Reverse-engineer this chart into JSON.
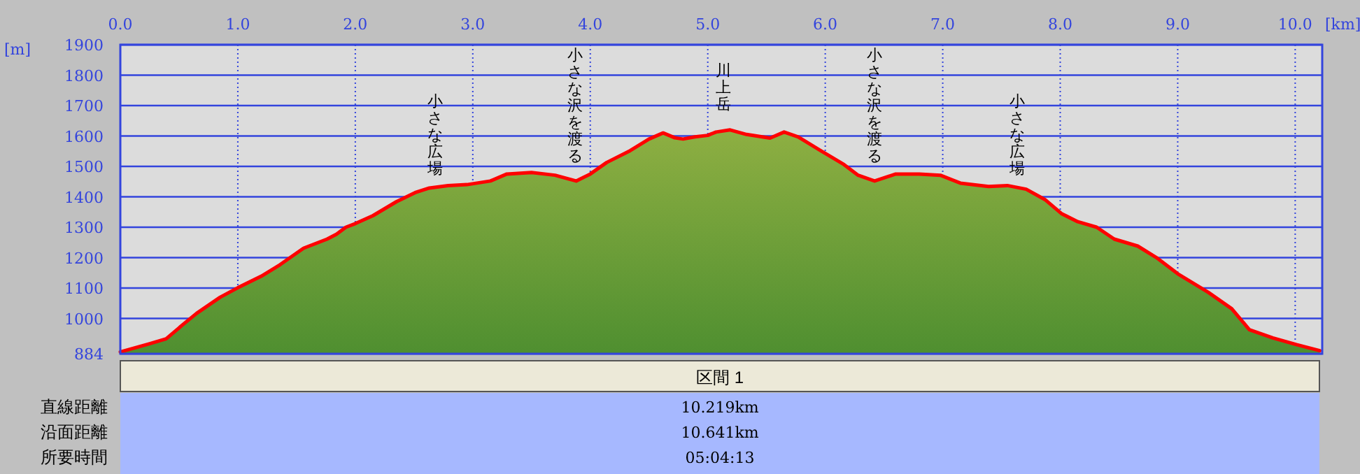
{
  "chart_data": {
    "type": "area",
    "xlabel": "[km]",
    "ylabel": "[m]",
    "x": [
      0,
      0.25,
      0.39,
      0.53,
      0.65,
      0.85,
      1.0,
      1.2,
      1.36,
      1.56,
      1.76,
      1.84,
      1.92,
      2.0,
      2.15,
      2.35,
      2.51,
      2.63,
      2.79,
      2.95,
      3.15,
      3.29,
      3.5,
      3.7,
      3.88,
      4.0,
      4.14,
      4.34,
      4.5,
      4.62,
      4.72,
      4.79,
      4.89,
      5.0,
      5.07,
      5.19,
      5.33,
      5.53,
      5.65,
      5.77,
      5.96,
      6.16,
      6.28,
      6.42,
      6.6,
      6.8,
      6.98,
      7.15,
      7.39,
      7.55,
      7.71,
      7.87,
      8.01,
      8.15,
      8.31,
      8.46,
      8.66,
      8.82,
      9.0,
      9.26,
      9.46,
      9.61,
      9.81,
      10.01,
      10.21
    ],
    "series": [
      {
        "color": "#ff0000",
        "values": [
          890,
          917,
          933,
          979,
          1017,
          1070,
          1101,
          1139,
          1177,
          1231,
          1261,
          1277,
          1300,
          1312,
          1338,
          1384,
          1414,
          1429,
          1437,
          1440,
          1452,
          1475,
          1480,
          1471,
          1452,
          1475,
          1513,
          1552,
          1590,
          1610,
          1594,
          1590,
          1597,
          1602,
          1613,
          1620,
          1605,
          1593,
          1613,
          1597,
          1552,
          1506,
          1471,
          1452,
          1475,
          1475,
          1471,
          1445,
          1434,
          1437,
          1425,
          1391,
          1345,
          1318,
          1300,
          1261,
          1238,
          1200,
          1147,
          1086,
          1032,
          963,
          936,
          914,
          894
        ]
      }
    ],
    "xlim": [
      0,
      10.23
    ],
    "ylim": [
      884,
      1900
    ],
    "xticks": [
      {
        "value": 0,
        "label": "0.0"
      },
      {
        "value": 1,
        "label": "1.0"
      },
      {
        "value": 2,
        "label": "2.0"
      },
      {
        "value": 3,
        "label": "3.0"
      },
      {
        "value": 4,
        "label": "4.0"
      },
      {
        "value": 5,
        "label": "5.0"
      },
      {
        "value": 6,
        "label": "6.0"
      },
      {
        "value": 7,
        "label": "7.0"
      },
      {
        "value": 8,
        "label": "8.0"
      },
      {
        "value": 9,
        "label": "9.0"
      },
      {
        "value": 10,
        "label": "10.0"
      }
    ],
    "yticks": [
      884,
      1000,
      1100,
      1200,
      1300,
      1400,
      1500,
      1600,
      1700,
      1800,
      1900
    ],
    "grid": true,
    "annotations": [
      "小さな広場",
      "小さな沢を渡る",
      "川上岳",
      "小さな沢を渡る",
      "小さな広場",
      "区間 1",
      "直線距離",
      "10.219km",
      "沿面距離",
      "10.641km",
      "所要時間",
      "05:04:13"
    ]
  }
}
